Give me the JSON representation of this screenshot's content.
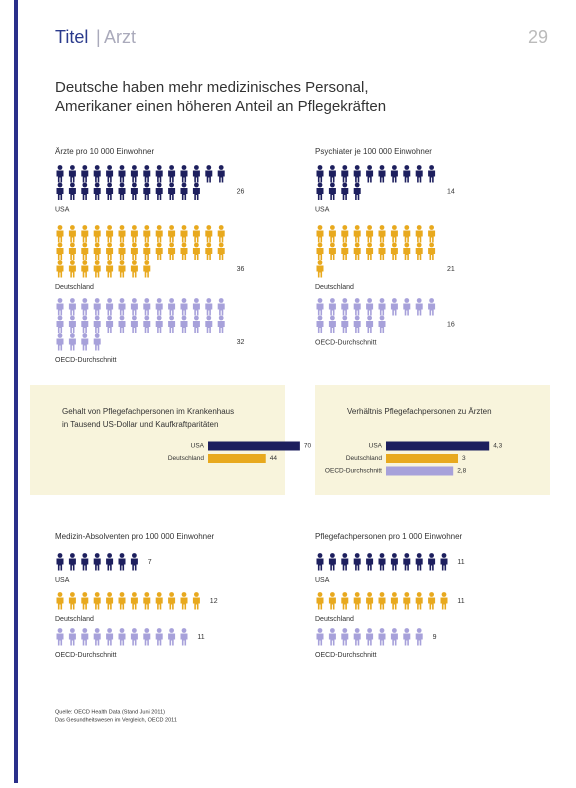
{
  "header": {
    "section": "Titel",
    "topic": "Arzt",
    "page": "29"
  },
  "headline": [
    "Deutsche haben mehr medizinisches Personal,",
    "Amerikaner einen höheren Anteil an Pflegekräften"
  ],
  "pictographs": [
    {
      "title": "Ärzte pro 10 000 Einwohner",
      "groups": [
        {
          "name": "USA",
          "value": 26,
          "color": "#1d1f5e"
        },
        {
          "name": "Deutschland",
          "value": 36,
          "color": "#e8a91e"
        },
        {
          "name": "OECD-Durchschnitt",
          "value": 32,
          "color": "#a7a1da"
        }
      ]
    },
    {
      "title": "Psychiater je 100 000 Einwohner",
      "groups": [
        {
          "name": "USA",
          "value": 14,
          "color": "#1d1f5e"
        },
        {
          "name": "Deutschland",
          "value": 21,
          "color": "#e8a91e"
        },
        {
          "name": "OECD-Durchschnitt",
          "value": 16,
          "color": "#a7a1da"
        }
      ]
    },
    {
      "title": "Medizin-Absolventen pro 100 000 Einwohner",
      "groups": [
        {
          "name": "USA",
          "value": 7,
          "color": "#1d1f5e"
        },
        {
          "name": "Deutschland",
          "value": 12,
          "color": "#e8a91e"
        },
        {
          "name": "OECD-Durchschnitt",
          "value": 11,
          "color": "#a7a1da"
        }
      ]
    },
    {
      "title": "Pflegefachpersonen pro 1 000 Einwohner",
      "groups": [
        {
          "name": "USA",
          "value": 11,
          "color": "#1d1f5e"
        },
        {
          "name": "Deutschland",
          "value": 11,
          "color": "#e8a91e"
        },
        {
          "name": "OECD-Durchschnitt",
          "value": 9,
          "color": "#a7a1da"
        }
      ]
    }
  ],
  "bar_panels": [
    {
      "title": [
        "Gehalt von Pflegefachpersonen im Krankenhaus",
        "in Tausend US-Dollar und Kaufkraftparitäten"
      ],
      "categories": [
        "USA",
        "Deutschland"
      ],
      "values": [
        70,
        44
      ],
      "colors": [
        "#1d1f5e",
        "#e8a91e"
      ],
      "xlim": [
        0,
        80
      ]
    },
    {
      "title": [
        "Verhältnis Pflegefachpersonen zu Ärzten"
      ],
      "categories": [
        "USA",
        "Deutschland",
        "OECD-Durchschnitt"
      ],
      "values": [
        4.3,
        3,
        2.8
      ],
      "value_labels": [
        "4,3",
        "3",
        "2,8"
      ],
      "colors": [
        "#1d1f5e",
        "#e8a91e",
        "#a7a1da"
      ],
      "xlim": [
        0,
        5
      ]
    }
  ],
  "sources": [
    "Quelle: OECD Health Data (Stand Juni 2011)",
    "Das Gesundheitswesen im Vergleich, OECD 2011"
  ]
}
